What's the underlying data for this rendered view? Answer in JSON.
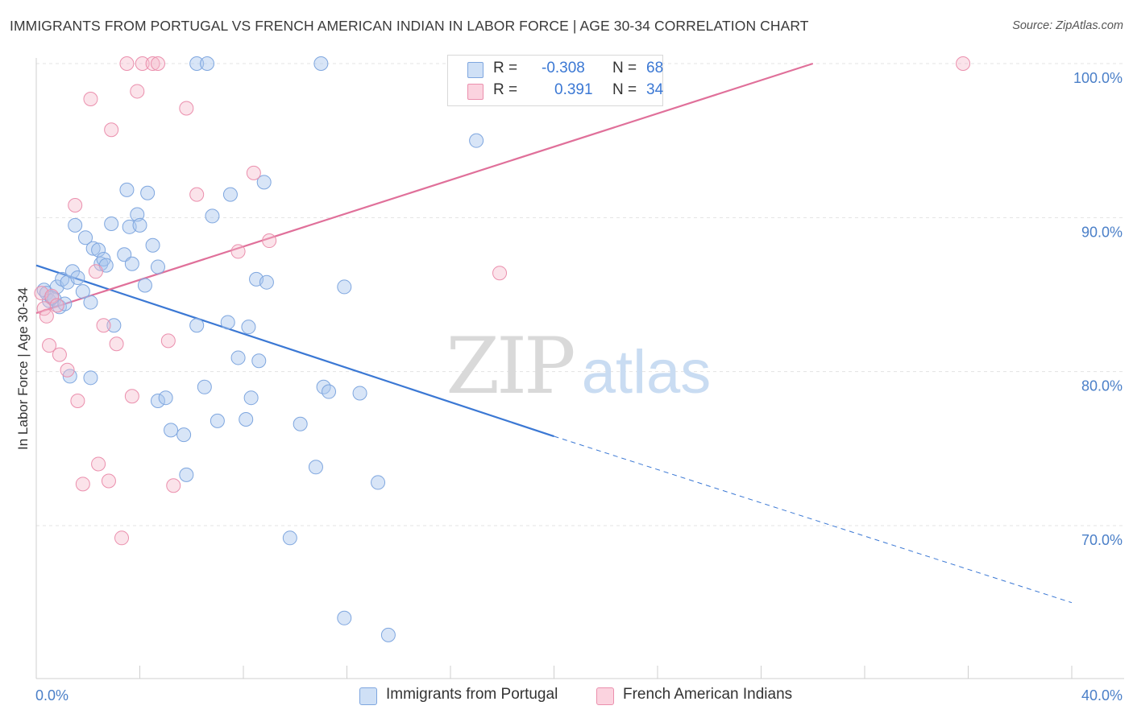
{
  "title": "IMMIGRANTS FROM PORTUGAL VS FRENCH AMERICAN INDIAN IN LABOR FORCE | AGE 30-34 CORRELATION CHART",
  "source": "Source: ZipAtlas.com",
  "watermark": {
    "zip": "ZIP",
    "atlas": "atlas"
  },
  "legend": {
    "r_label": "R =",
    "n_label": "N =",
    "rows": [
      {
        "r": "-0.308",
        "n": "68",
        "color": "#a9c6ee"
      },
      {
        "r": "0.391",
        "n": "34",
        "color": "#f5b9cb"
      }
    ]
  },
  "bottom_legend": [
    "Immigrants from Portugal",
    "French American Indians"
  ],
  "chart_data": {
    "type": "scatter",
    "title": "IMMIGRANTS FROM PORTUGAL VS FRENCH AMERICAN INDIAN IN LABOR FORCE | AGE 30-34 CORRELATION CHART",
    "xlabel": "",
    "ylabel": "In Labor Force | Age 30-34",
    "xlim": [
      0,
      40
    ],
    "ylim": [
      60,
      101
    ],
    "x_tick_labels": [
      "0.0%",
      "40.0%"
    ],
    "y_ticks": [
      70,
      80,
      90,
      100
    ],
    "y_tick_labels": [
      "70.0%",
      "80.0%",
      "90.0%",
      "100.0%"
    ],
    "grid": true,
    "colors": {
      "blue": "#3b78d4",
      "pink": "#e0709a",
      "blue_fill": "#a9c6ee",
      "pink_fill": "#f5b9cb",
      "tick": "#4a7fc8"
    },
    "series": [
      {
        "name": "Immigrants from Portugal",
        "color": "#3b78d4",
        "points": [
          [
            0.3,
            85.3
          ],
          [
            0.4,
            85.1
          ],
          [
            0.5,
            84.6
          ],
          [
            0.7,
            84.7
          ],
          [
            0.8,
            85.5
          ],
          [
            0.9,
            84.2
          ],
          [
            1.0,
            86.0
          ],
          [
            1.2,
            85.8
          ],
          [
            1.4,
            86.5
          ],
          [
            1.5,
            89.5
          ],
          [
            1.6,
            86.1
          ],
          [
            1.8,
            85.2
          ],
          [
            1.9,
            88.7
          ],
          [
            2.1,
            84.5
          ],
          [
            2.2,
            88.0
          ],
          [
            2.4,
            87.9
          ],
          [
            2.5,
            87.0
          ],
          [
            2.6,
            87.3
          ],
          [
            2.9,
            89.6
          ],
          [
            3.0,
            83.0
          ],
          [
            3.4,
            87.6
          ],
          [
            3.5,
            91.8
          ],
          [
            3.6,
            89.4
          ],
          [
            3.7,
            87.0
          ],
          [
            3.9,
            90.2
          ],
          [
            4.0,
            89.5
          ],
          [
            4.2,
            85.6
          ],
          [
            4.3,
            91.6
          ],
          [
            4.5,
            88.2
          ],
          [
            4.7,
            86.8
          ],
          [
            6.2,
            100
          ],
          [
            6.6,
            100
          ],
          [
            6.8,
            90.1
          ],
          [
            7.5,
            91.5
          ],
          [
            8.8,
            92.3
          ],
          [
            8.5,
            86.0
          ],
          [
            8.9,
            85.8
          ],
          [
            11.0,
            100
          ],
          [
            11.9,
            85.5
          ],
          [
            6.2,
            83.0
          ],
          [
            7.4,
            83.2
          ],
          [
            8.2,
            82.9
          ],
          [
            7.8,
            80.9
          ],
          [
            8.6,
            80.7
          ],
          [
            1.3,
            79.7
          ],
          [
            2.1,
            79.6
          ],
          [
            4.7,
            78.1
          ],
          [
            5.0,
            78.3
          ],
          [
            6.5,
            79.0
          ],
          [
            8.3,
            78.3
          ],
          [
            11.1,
            79.0
          ],
          [
            11.3,
            78.7
          ],
          [
            12.5,
            78.6
          ],
          [
            5.2,
            76.2
          ],
          [
            5.7,
            75.9
          ],
          [
            7.0,
            76.8
          ],
          [
            8.1,
            76.9
          ],
          [
            10.2,
            76.6
          ],
          [
            10.8,
            73.8
          ],
          [
            13.2,
            72.8
          ],
          [
            5.8,
            73.3
          ],
          [
            9.8,
            69.2
          ],
          [
            11.9,
            64.0
          ],
          [
            13.6,
            62.9
          ],
          [
            17.0,
            95.0
          ],
          [
            0.6,
            84.8
          ],
          [
            1.1,
            84.4
          ],
          [
            2.7,
            86.9
          ]
        ],
        "trend": {
          "x0": 0,
          "y0": 86.9,
          "x1": 20,
          "y1": 75.8,
          "dashed_to_x": 40,
          "dashed_to_y": 65.0
        }
      },
      {
        "name": "French American Indians",
        "color": "#e0709a",
        "points": [
          [
            0.2,
            85.1
          ],
          [
            0.3,
            84.1
          ],
          [
            0.4,
            83.6
          ],
          [
            0.5,
            81.7
          ],
          [
            0.6,
            84.9
          ],
          [
            0.8,
            84.3
          ],
          [
            0.9,
            81.1
          ],
          [
            1.2,
            80.1
          ],
          [
            1.5,
            90.8
          ],
          [
            1.6,
            78.1
          ],
          [
            1.8,
            72.7
          ],
          [
            2.1,
            97.7
          ],
          [
            2.3,
            86.5
          ],
          [
            2.4,
            74.0
          ],
          [
            2.6,
            83.0
          ],
          [
            2.8,
            72.9
          ],
          [
            2.9,
            95.7
          ],
          [
            3.1,
            81.8
          ],
          [
            3.3,
            69.2
          ],
          [
            3.5,
            100
          ],
          [
            3.7,
            78.4
          ],
          [
            3.9,
            98.2
          ],
          [
            4.1,
            100
          ],
          [
            4.5,
            100
          ],
          [
            4.7,
            100
          ],
          [
            5.1,
            82.0
          ],
          [
            5.3,
            72.6
          ],
          [
            5.8,
            97.1
          ],
          [
            6.2,
            91.5
          ],
          [
            7.8,
            87.8
          ],
          [
            8.4,
            92.9
          ],
          [
            9.0,
            88.5
          ],
          [
            17.9,
            86.4
          ],
          [
            35.8,
            100
          ]
        ],
        "trend": {
          "x0": 0,
          "y0": 83.8,
          "x1": 30,
          "y1": 100.0
        }
      }
    ]
  }
}
